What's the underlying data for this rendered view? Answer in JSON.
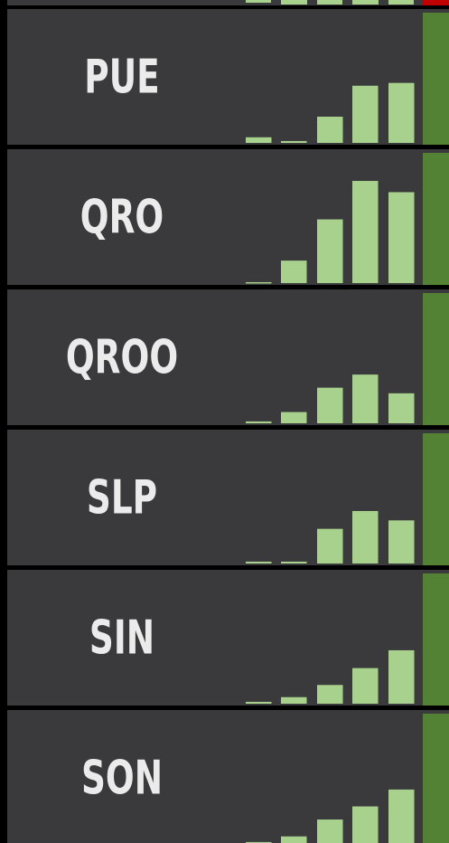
{
  "chart_data": [
    {
      "type": "bar",
      "title": "PUE",
      "values": [
        6,
        2,
        28,
        61,
        64
      ],
      "color": "#a9d18e",
      "ylim": [
        0,
        110
      ]
    },
    {
      "type": "bar",
      "title": "QRO",
      "values": [
        1,
        24,
        68,
        109,
        97
      ],
      "color": "#a9d18e",
      "ylim": [
        0,
        110
      ]
    },
    {
      "type": "bar",
      "title": "QROO",
      "values": [
        2,
        12,
        38,
        52,
        32
      ],
      "color": "#a9d18e",
      "ylim": [
        0,
        110
      ]
    },
    {
      "type": "bar",
      "title": "SLP",
      "values": [
        2,
        2,
        37,
        56,
        46
      ],
      "color": "#a9d18e",
      "ylim": [
        0,
        110
      ]
    },
    {
      "type": "bar",
      "title": "SIN",
      "values": [
        2,
        7,
        20,
        38,
        57
      ],
      "color": "#a9d18e",
      "ylim": [
        0,
        110
      ]
    },
    {
      "type": "bar",
      "title": "SON",
      "values": [
        2,
        8,
        26,
        40,
        58
      ],
      "color": "#a9d18e",
      "ylim": [
        0,
        110
      ]
    }
  ]
}
